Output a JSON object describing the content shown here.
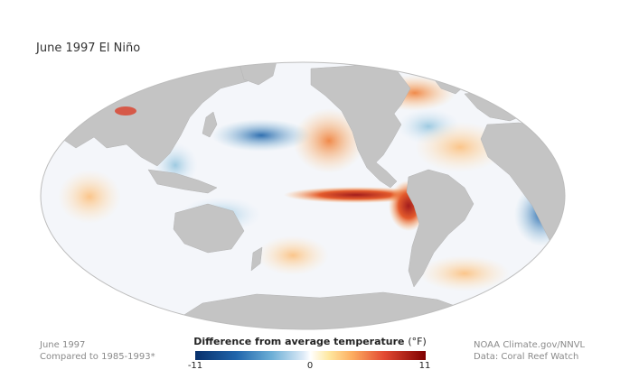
{
  "map": {
    "title": "June 1997 El Niño",
    "projection": "mollweide",
    "land_color": "#c4c4c4",
    "ocean_neutral_color": "#f4f6fa",
    "warm_color": "#e34a33",
    "cold_color": "#2166ac",
    "features": [
      "El Niño warm tongue in eastern equatorial Pacific",
      "Cool anomaly in central North Pacific",
      "Warm anomaly off North America west coast"
    ]
  },
  "legend": {
    "title": "Difference from average temperature",
    "unit": "(°F)",
    "min_label": "-11",
    "mid_label": "0",
    "max_label": "11",
    "scale_min": -11,
    "scale_max": 11
  },
  "footer": {
    "date": "June 1997",
    "baseline": "Compared to 1985-1993*",
    "credit": "NOAA Climate.gov/NNVL",
    "source": "Data: Coral Reef Watch"
  }
}
